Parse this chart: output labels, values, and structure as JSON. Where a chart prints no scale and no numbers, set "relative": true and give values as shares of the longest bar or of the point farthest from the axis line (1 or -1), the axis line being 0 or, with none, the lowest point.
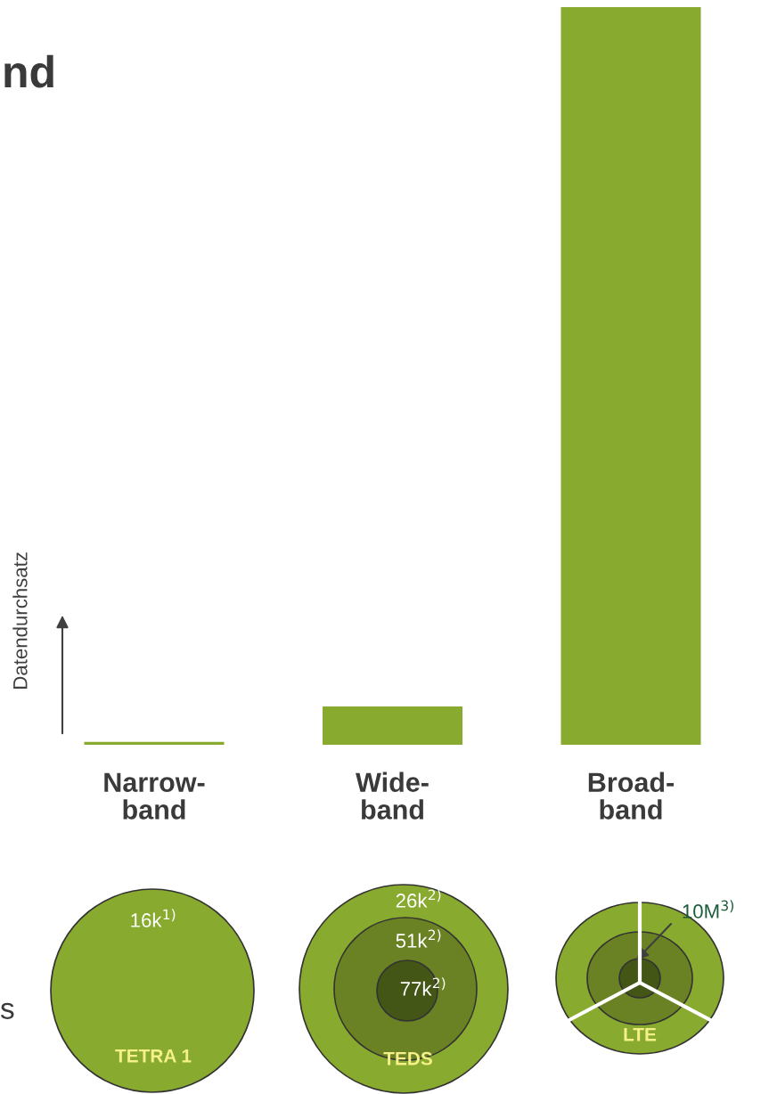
{
  "chart_data": {
    "type": "bar",
    "title": "nd",
    "ylabel": "Datendurchsatz",
    "categories": [
      "Narrow-\nband",
      "Wide-\nband",
      "Broad-\nband"
    ],
    "values": [
      0.004,
      0.052,
      1
    ],
    "color": "#88aa2e",
    "relative": true,
    "grid": false,
    "legend": false,
    "annotations": [
      "s",
      "16k$^{1)}$",
      "26k$^{2)}$",
      "51k$^{2)}$",
      "77k$^{2)}$",
      "10M$^{3)}$",
      "TETRA 1",
      "TEDS",
      "LTE"
    ]
  }
}
